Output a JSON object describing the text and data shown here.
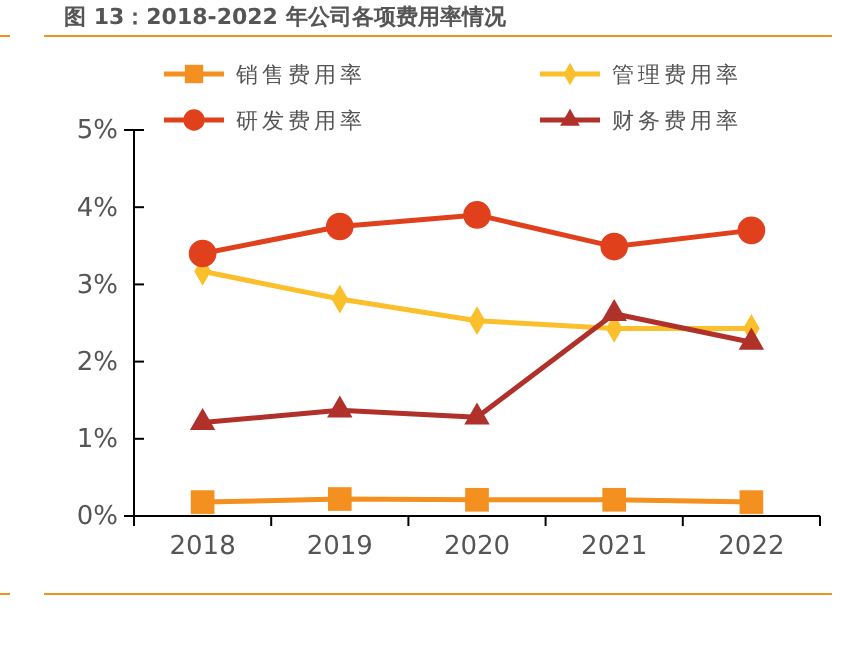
{
  "chart_data": {
    "type": "line",
    "title": "图 13：2018-2022 年公司各项费用率情况",
    "categories": [
      "2018",
      "2019",
      "2020",
      "2021",
      "2022"
    ],
    "series": [
      {
        "name": "销售费用率",
        "color": "#f39020",
        "marker": "square",
        "values": [
          0.18,
          0.22,
          0.21,
          0.21,
          0.18
        ]
      },
      {
        "name": "管理费用率",
        "color": "#fbbf2b",
        "marker": "diamond",
        "values": [
          3.17,
          2.81,
          2.53,
          2.43,
          2.43
        ]
      },
      {
        "name": "研发费用率",
        "color": "#e0401c",
        "marker": "circle",
        "values": [
          3.4,
          3.75,
          3.9,
          3.49,
          3.7
        ]
      },
      {
        "name": "财务费用率",
        "color": "#b0302a",
        "marker": "triangle",
        "values": [
          1.21,
          1.37,
          1.28,
          2.62,
          2.25
        ]
      }
    ],
    "ylim": [
      0,
      5
    ],
    "yticks": [
      {
        "value": 0,
        "label": "0%"
      },
      {
        "value": 1,
        "label": "1%"
      },
      {
        "value": 2,
        "label": "2%"
      },
      {
        "value": 3,
        "label": "3%"
      },
      {
        "value": 4,
        "label": "4%"
      },
      {
        "value": 5,
        "label": "5%"
      }
    ],
    "grid": false,
    "legend": "top",
    "line_style": "solid"
  }
}
